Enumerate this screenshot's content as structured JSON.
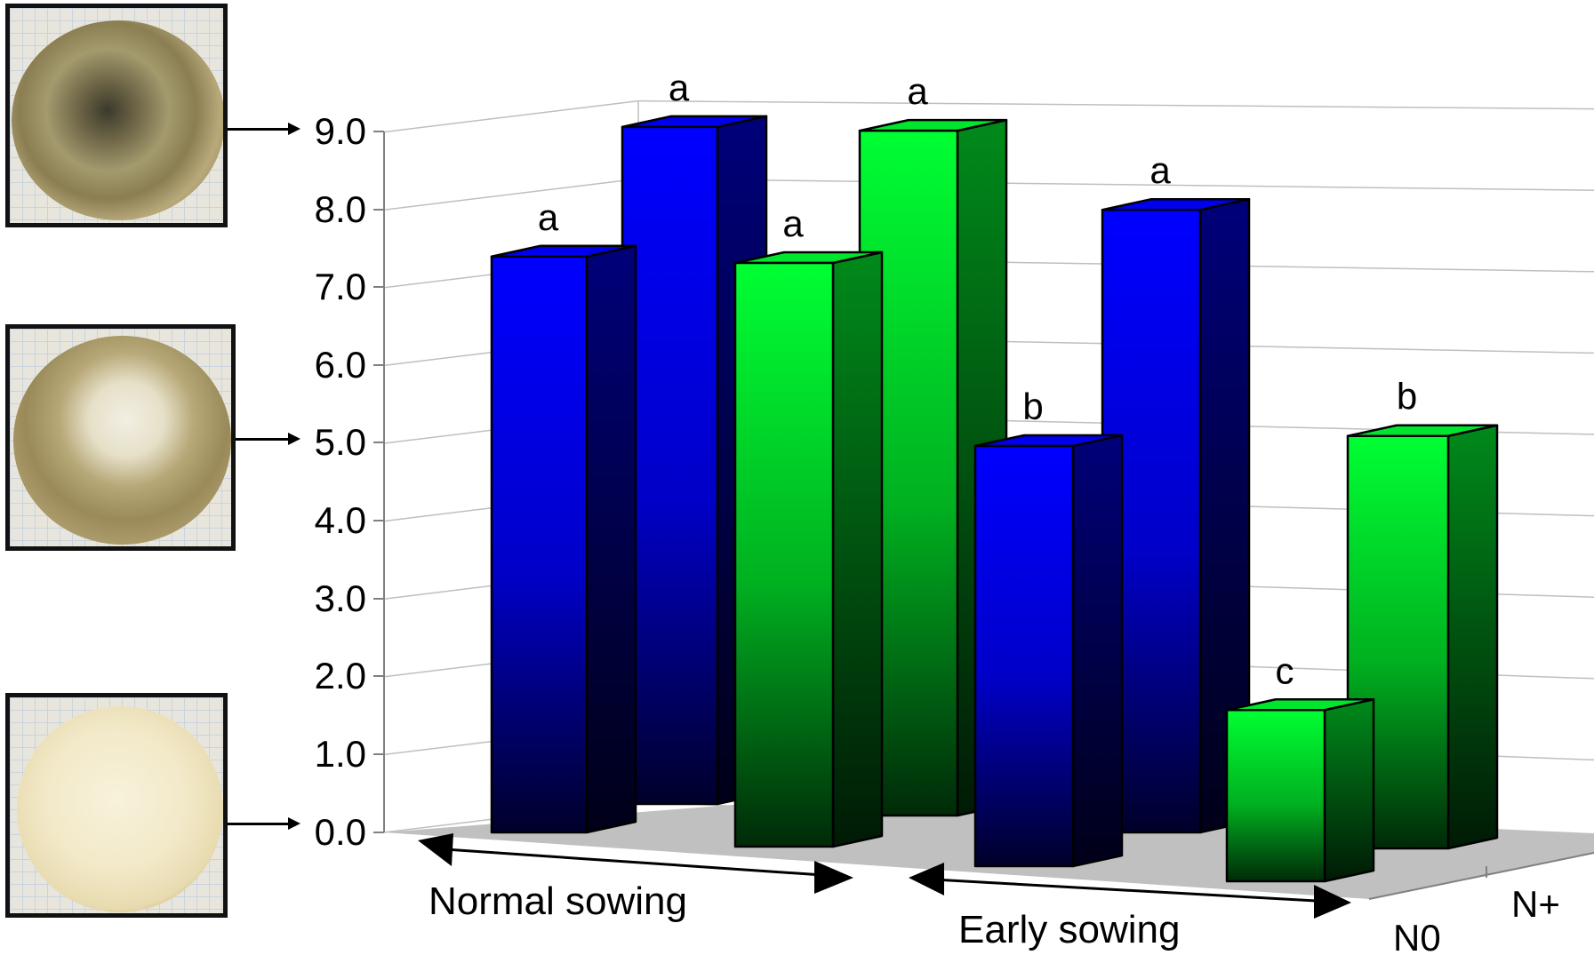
{
  "chart_data": {
    "type": "bar",
    "variant": "3d-grouped",
    "y_ticks": [
      "0.0",
      "1.0",
      "2.0",
      "3.0",
      "4.0",
      "5.0",
      "6.0",
      "7.0",
      "8.0",
      "9.0"
    ],
    "ylim": [
      0,
      9
    ],
    "series_axis_labels": [
      "N0",
      "N+"
    ],
    "group_labels": [
      "Normal sowing",
      "Early sowing"
    ],
    "colors": {
      "blue": "#0000ff",
      "green": "#00ff33",
      "floor": "#c0c0c0"
    },
    "bars": [
      {
        "group": "Normal sowing",
        "variety_color": "blue",
        "row": "N0",
        "value": 7.4,
        "letter": "a"
      },
      {
        "group": "Normal sowing",
        "variety_color": "blue",
        "row": "N+",
        "value": 8.7,
        "letter": "a"
      },
      {
        "group": "Normal sowing",
        "variety_color": "green",
        "row": "N0",
        "value": 7.5,
        "letter": "a"
      },
      {
        "group": "Normal sowing",
        "variety_color": "green",
        "row": "N+",
        "value": 8.8,
        "letter": "a"
      },
      {
        "group": "Early sowing",
        "variety_color": "blue",
        "row": "N0",
        "value": 5.4,
        "letter": "b"
      },
      {
        "group": "Early sowing",
        "variety_color": "blue",
        "row": "N+",
        "value": 8.0,
        "letter": "a"
      },
      {
        "group": "Early sowing",
        "variety_color": "green",
        "row": "N0",
        "value": 2.2,
        "letter": "c"
      },
      {
        "group": "Early sowing",
        "variety_color": "green",
        "row": "N+",
        "value": 5.3,
        "letter": "b"
      }
    ]
  },
  "photos": [
    {
      "depicts": "severely diseased root section"
    },
    {
      "depicts": "moderately diseased root section"
    },
    {
      "depicts": "healthy root section"
    }
  ]
}
